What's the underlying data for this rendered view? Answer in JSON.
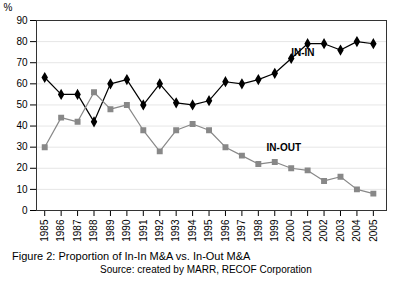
{
  "chart_data": {
    "type": "line",
    "y_label": "%",
    "caption": "Figure 2: Proportion of In-In M&A vs. In-Out M&A",
    "source": "Source: created by MARR, RECOF Corporation",
    "x": [
      1985,
      1986,
      1987,
      1988,
      1989,
      1990,
      1991,
      1992,
      1993,
      1994,
      1995,
      1996,
      1997,
      1998,
      1999,
      2000,
      2001,
      2002,
      2003,
      2004,
      2005
    ],
    "series": [
      {
        "name": "IN-IN",
        "color": "#000000",
        "marker": "diamond",
        "values": [
          63,
          55,
          55,
          42,
          60,
          62,
          50,
          60,
          51,
          50,
          52,
          61,
          60,
          62,
          65,
          72,
          79,
          79,
          76,
          80,
          79
        ]
      },
      {
        "name": "IN-OUT",
        "color": "#888888",
        "marker": "square",
        "values": [
          30,
          44,
          42,
          56,
          48,
          50,
          38,
          28,
          38,
          41,
          38,
          30,
          26,
          22,
          23,
          20,
          19,
          14,
          16,
          10,
          8
        ]
      }
    ],
    "xlim": [
      1984.5,
      2005.8
    ],
    "xticks": [
      1985,
      1986,
      1987,
      1988,
      1989,
      1990,
      1991,
      1992,
      1993,
      1994,
      1995,
      1996,
      1997,
      1998,
      1999,
      2000,
      2001,
      2002,
      2003,
      2004,
      2005
    ],
    "ylim": [
      0,
      90
    ],
    "yticks": [
      0,
      10,
      20,
      30,
      40,
      50,
      60,
      70,
      80,
      90
    ],
    "grid": true,
    "annotations": [
      {
        "text": "IN-IN",
        "x": 2000,
        "y": 73
      },
      {
        "text": "IN-OUT",
        "x": 1998.5,
        "y": 28
      }
    ]
  }
}
